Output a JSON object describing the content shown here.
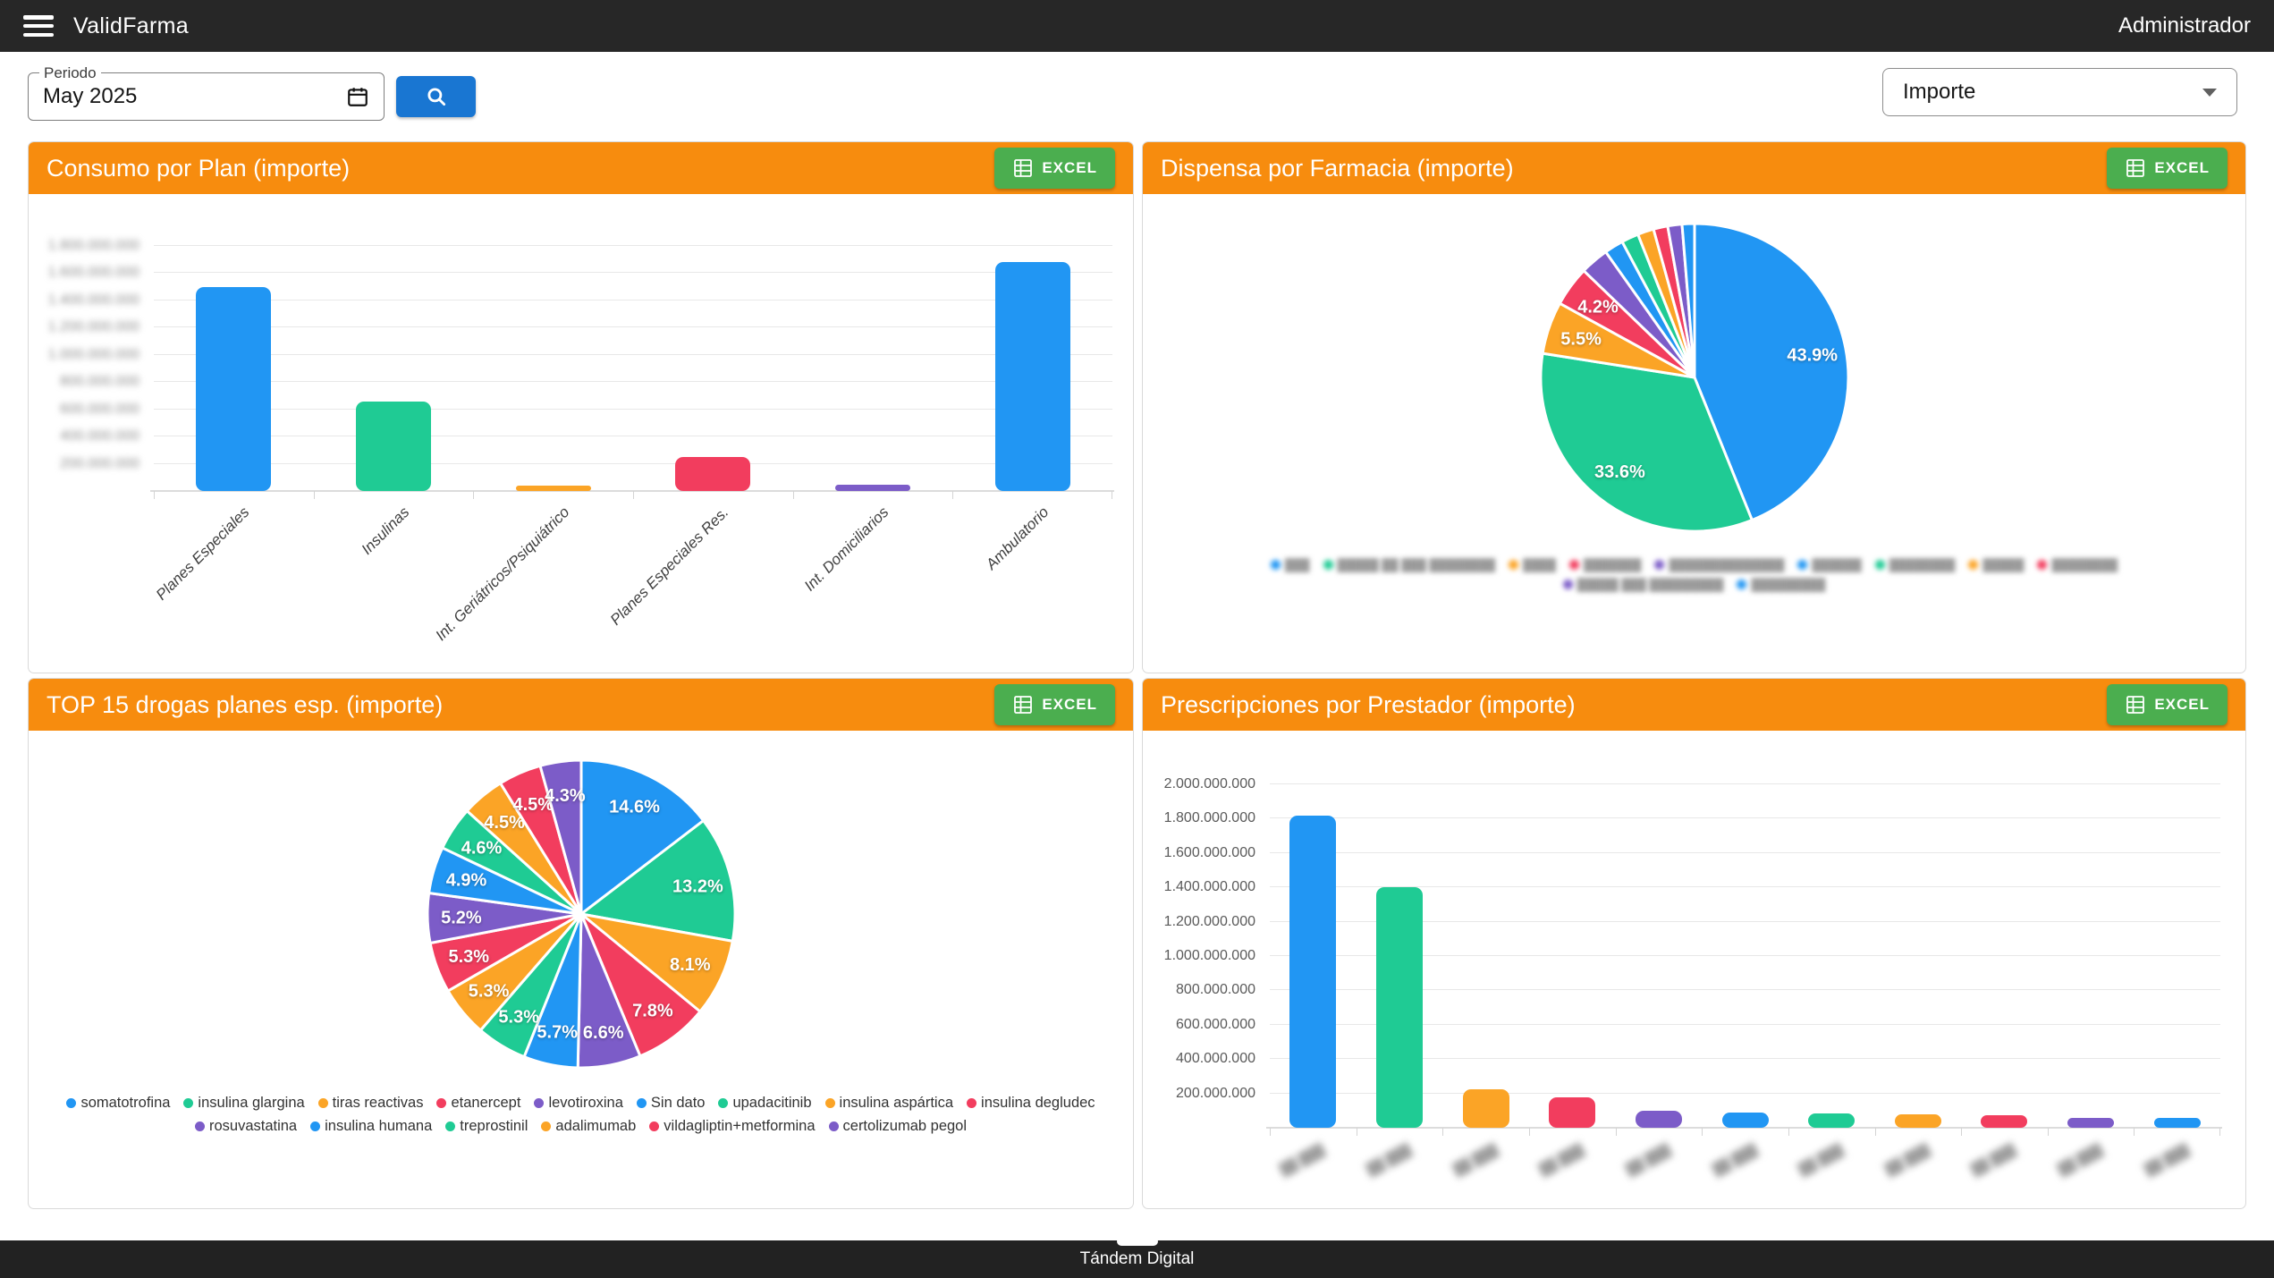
{
  "topbar": {
    "title": "ValidFarma",
    "user": "Administrador"
  },
  "filters": {
    "period_label": "Periodo",
    "period_value": "May 2025",
    "metric_selected": "Importe"
  },
  "labels": {
    "excel": "EXCEL"
  },
  "footer": {
    "text": "Tándem Digital"
  },
  "colors": {
    "palette": [
      "#2196F3",
      "#1FCB94",
      "#FBA426",
      "#F23D5E",
      "#7C5CC8"
    ],
    "header_orange": "#F78C0E",
    "excel_green": "#4BAE4F",
    "search_blue": "#1976D2",
    "topbar_bg": "#272727"
  },
  "panels": [
    {
      "id": "consumo-por-plan",
      "title": "Consumo por Plan (importe)",
      "chart_data": {
        "type": "bar",
        "categories": [
          "Planes Especiales",
          "Insulinas",
          "Int. Geriátricos/Psiquiátrico",
          "Planes Especiales Res.",
          "Int. Domiciliarios",
          "Ambulatorio"
        ],
        "values_millions": [
          1500,
          660,
          30,
          250,
          48,
          1680
        ],
        "ylim_millions": [
          0,
          2000
        ],
        "grid": true,
        "y_axis_blurred": true,
        "y_ticks": [
          {
            "v": 200,
            "label": "200.000.000"
          },
          {
            "v": 400,
            "label": "400.000.000"
          },
          {
            "v": 600,
            "label": "600.000.000"
          },
          {
            "v": 800,
            "label": "800.000.000"
          },
          {
            "v": 1000,
            "label": "1.000.000.000"
          },
          {
            "v": 1200,
            "label": "1.200.000.000"
          },
          {
            "v": 1400,
            "label": "1.400.000.000"
          },
          {
            "v": 1600,
            "label": "1.600.000.000"
          },
          {
            "v": 1800,
            "label": "1.800.000.000"
          }
        ]
      }
    },
    {
      "id": "dispensa-por-farmacia",
      "title": "Dispensa por Farmacia (importe)",
      "chart_data": {
        "type": "pie",
        "label_min_pct": 4,
        "legend_masked": true,
        "legend_break": 9,
        "slices": [
          {
            "pct": 43.9
          },
          {
            "pct": 33.6
          },
          {
            "pct": 5.5
          },
          {
            "pct": 4.2
          },
          {
            "pct": 3.0
          },
          {
            "pct": 2.0
          },
          {
            "pct": 1.8
          },
          {
            "pct": 1.7
          },
          {
            "pct": 1.5
          },
          {
            "pct": 1.5
          },
          {
            "pct": 1.3
          }
        ],
        "legend_texts": [
          "███",
          "█████ ██ ███ ████████",
          "████",
          "███████",
          "██████████████",
          "██████",
          "████████",
          "█████",
          "████████",
          "█████ ███ █████████",
          "█████████"
        ]
      }
    },
    {
      "id": "top15-drogas",
      "title": "TOP 15 drogas planes esp. (importe)",
      "chart_data": {
        "type": "pie",
        "label_min_pct": 4,
        "legend_masked": false,
        "legend_break": 9,
        "slices": [
          {
            "pct": 14.6,
            "name": "somatotrofina"
          },
          {
            "pct": 13.2,
            "name": "insulina glargina"
          },
          {
            "pct": 8.1,
            "name": "tiras reactivas"
          },
          {
            "pct": 7.8,
            "name": "etanercept"
          },
          {
            "pct": 6.6,
            "name": "levotiroxina"
          },
          {
            "pct": 5.7,
            "name": "Sin dato"
          },
          {
            "pct": 5.3,
            "name": "upadacitinib"
          },
          {
            "pct": 5.3,
            "name": "insulina aspártica"
          },
          {
            "pct": 5.3,
            "name": "insulina degludec"
          },
          {
            "pct": 5.2,
            "name": "rosuvastatina"
          },
          {
            "pct": 4.9,
            "name": "insulina humana"
          },
          {
            "pct": 4.6,
            "name": "treprostinil"
          },
          {
            "pct": 4.5,
            "name": "adalimumab"
          },
          {
            "pct": 4.5,
            "name": "vildagliptin+metformina"
          },
          {
            "pct": 4.3,
            "name": "certolizumab pegol"
          }
        ]
      }
    },
    {
      "id": "prescripciones-por-prestador",
      "title": "Prescripciones por Prestador (importe)",
      "chart_data": {
        "type": "bar",
        "categories_masked": true,
        "categories": [
          "██ ███",
          "██ ███",
          "██ ███",
          "██ ███",
          "██ ███",
          "██ ███",
          "██ ███",
          "██ ███",
          "██ ███",
          "██ ███",
          "██ ███"
        ],
        "values_millions": [
          1820,
          1400,
          225,
          175,
          100,
          88,
          82,
          80,
          72,
          60,
          55
        ],
        "ylim_millions": [
          0,
          2100
        ],
        "grid": true,
        "y_axis_blurred": false,
        "y_ticks": [
          {
            "v": 200,
            "label": "200.000.000"
          },
          {
            "v": 400,
            "label": "400.000.000"
          },
          {
            "v": 600,
            "label": "600.000.000"
          },
          {
            "v": 800,
            "label": "800.000.000"
          },
          {
            "v": 1000,
            "label": "1.000.000.000"
          },
          {
            "v": 1200,
            "label": "1.200.000.000"
          },
          {
            "v": 1400,
            "label": "1.400.000.000"
          },
          {
            "v": 1600,
            "label": "1.600.000.000"
          },
          {
            "v": 1800,
            "label": "1.800.000.000"
          },
          {
            "v": 2000,
            "label": "2.000.000.000"
          }
        ]
      }
    }
  ]
}
